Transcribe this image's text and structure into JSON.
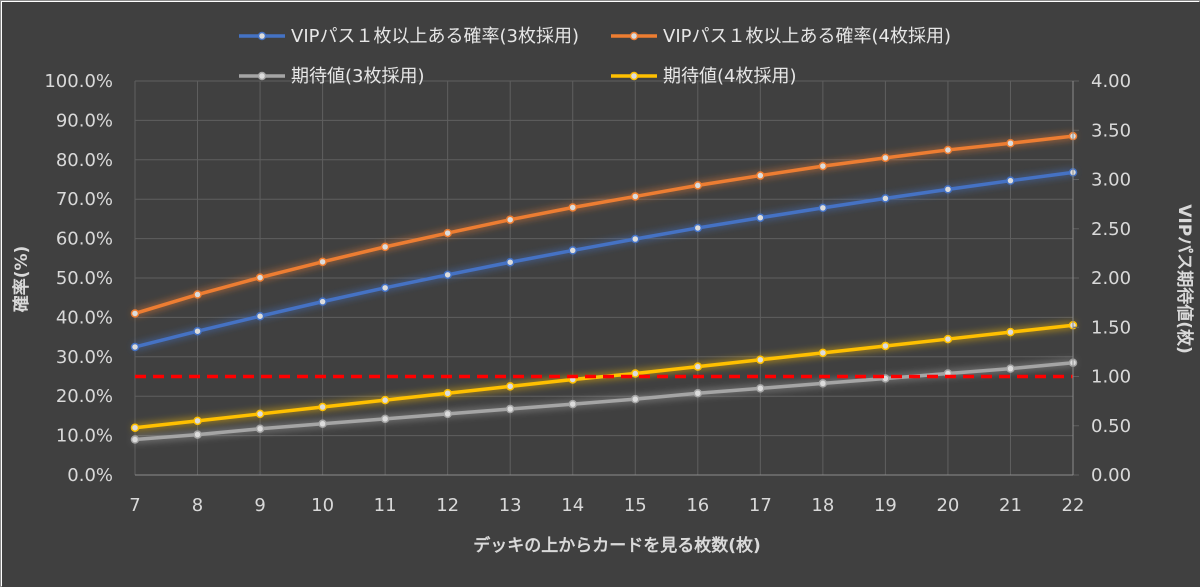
{
  "chart_data": {
    "type": "line",
    "x": [
      7,
      8,
      9,
      10,
      11,
      12,
      13,
      14,
      15,
      16,
      17,
      18,
      19,
      20,
      21,
      22
    ],
    "xlabel": "デッキの上からカードを見る枚数(枚)",
    "ylabel_left": "確率(%)",
    "ylabel_right": "VIPパス期待値(枚)",
    "ylim_left": [
      0,
      100
    ],
    "ylim_right": [
      0,
      4
    ],
    "y_ticks_left": [
      "0.0%",
      "10.0%",
      "20.0%",
      "30.0%",
      "40.0%",
      "50.0%",
      "60.0%",
      "70.0%",
      "80.0%",
      "90.0%",
      "100.0%"
    ],
    "y_ticks_right": [
      "0.00",
      "0.50",
      "1.00",
      "1.50",
      "2.00",
      "2.50",
      "3.00",
      "3.50",
      "4.00"
    ],
    "grid": true,
    "legend_position": "top",
    "reference_line": {
      "axis": "right",
      "value": 1.0,
      "color": "#ff0000",
      "style": "dashed"
    },
    "series": [
      {
        "name": "VIPパス１枚以上ある確率(3枚採用)",
        "axis": "left",
        "color": "#4472c4",
        "values": [
          32.5,
          36.5,
          40.3,
          44.0,
          47.5,
          50.8,
          54.0,
          57.0,
          59.9,
          62.7,
          65.3,
          67.8,
          70.2,
          72.5,
          74.7,
          76.8
        ]
      },
      {
        "name": "VIPパス１枚以上ある確率(4枚採用)",
        "axis": "left",
        "color": "#ed7d31",
        "values": [
          41.0,
          45.8,
          50.1,
          54.1,
          57.9,
          61.4,
          64.8,
          67.9,
          70.7,
          73.5,
          76.0,
          78.4,
          80.5,
          82.5,
          84.2,
          86.0
        ]
      },
      {
        "name": "期待値(3枚採用)",
        "axis": "right",
        "color": "#a5a5a5",
        "values": [
          0.36,
          0.41,
          0.47,
          0.52,
          0.57,
          0.62,
          0.67,
          0.72,
          0.77,
          0.83,
          0.88,
          0.93,
          0.98,
          1.03,
          1.08,
          1.14
        ]
      },
      {
        "name": "期待値(4枚採用)",
        "axis": "right",
        "color": "#ffc000",
        "values": [
          0.48,
          0.55,
          0.62,
          0.69,
          0.76,
          0.83,
          0.9,
          0.97,
          1.03,
          1.1,
          1.17,
          1.24,
          1.31,
          1.38,
          1.45,
          1.52
        ]
      }
    ]
  },
  "colors": {
    "background": "#404040",
    "gridline": "#5f5f5f",
    "text": "#d9d9d9"
  }
}
